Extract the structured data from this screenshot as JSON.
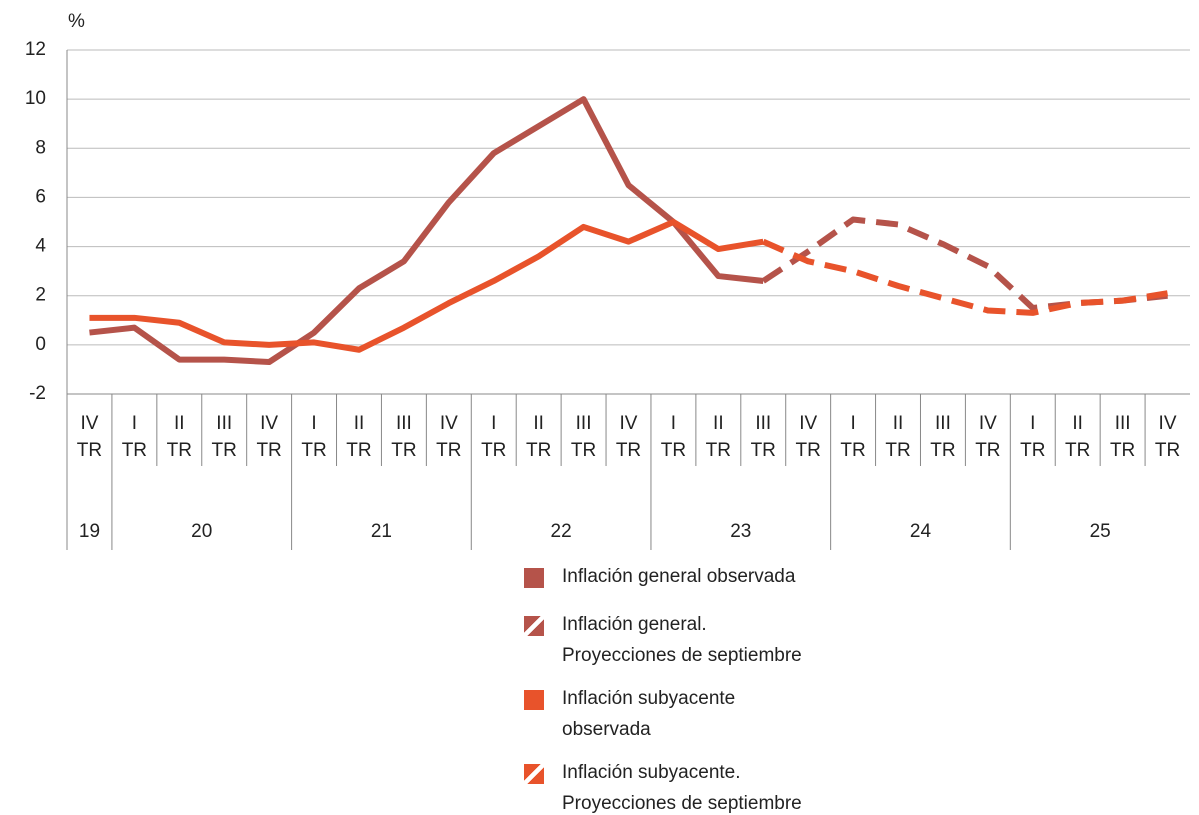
{
  "chart_data": {
    "type": "line",
    "y_axis_label": "%",
    "categories": [
      "IV TR",
      "I TR",
      "II TR",
      "III TR",
      "IV TR",
      "I TR",
      "II TR",
      "III TR",
      "IV TR",
      "I TR",
      "II TR",
      "III TR",
      "IV TR",
      "I TR",
      "II TR",
      "III TR",
      "IV TR",
      "I TR",
      "II TR",
      "III TR",
      "IV TR",
      "I TR",
      "II TR",
      "III TR",
      "IV TR"
    ],
    "year_groups": [
      {
        "label": "19",
        "span": 1
      },
      {
        "label": "20",
        "span": 4
      },
      {
        "label": "21",
        "span": 4
      },
      {
        "label": "22",
        "span": 4
      },
      {
        "label": "23",
        "span": 4
      },
      {
        "label": "24",
        "span": 4
      },
      {
        "label": "25",
        "span": 4
      }
    ],
    "ylim": [
      -2,
      12
    ],
    "yticks": [
      -2,
      0,
      2,
      4,
      6,
      8,
      10,
      12
    ],
    "grid": true,
    "series": [
      {
        "name": "Inflación general observada",
        "color": "#b5534a",
        "dashed": false,
        "values": [
          0.5,
          0.7,
          -0.6,
          -0.6,
          -0.7,
          0.5,
          2.3,
          3.4,
          5.8,
          7.8,
          8.9,
          10.0,
          6.5,
          5.0,
          2.8,
          2.6,
          null,
          null,
          null,
          null,
          null,
          null,
          null,
          null,
          null
        ]
      },
      {
        "name": "Inflación general.\nProyecciones de septiembre",
        "color": "#b5534a",
        "dashed": true,
        "values": [
          null,
          null,
          null,
          null,
          null,
          null,
          null,
          null,
          null,
          null,
          null,
          null,
          null,
          null,
          null,
          2.6,
          3.8,
          5.1,
          4.9,
          4.1,
          3.2,
          1.5,
          1.7,
          1.8,
          2.0
        ]
      },
      {
        "name": "Inflación subyacente\nobservada",
        "color": "#e8532b",
        "dashed": false,
        "values": [
          1.1,
          1.1,
          0.9,
          0.1,
          0.0,
          0.1,
          -0.2,
          0.7,
          1.7,
          2.6,
          3.6,
          4.8,
          4.2,
          5.0,
          3.9,
          4.2,
          null,
          null,
          null,
          null,
          null,
          null,
          null,
          null,
          null
        ]
      },
      {
        "name": "Inflación subyacente.\nProyecciones de septiembre",
        "color": "#e8532b",
        "dashed": true,
        "values": [
          null,
          null,
          null,
          null,
          null,
          null,
          null,
          null,
          null,
          null,
          null,
          null,
          null,
          null,
          null,
          4.2,
          3.4,
          3.0,
          2.4,
          1.9,
          1.4,
          1.3,
          1.7,
          1.8,
          2.1
        ]
      }
    ]
  }
}
